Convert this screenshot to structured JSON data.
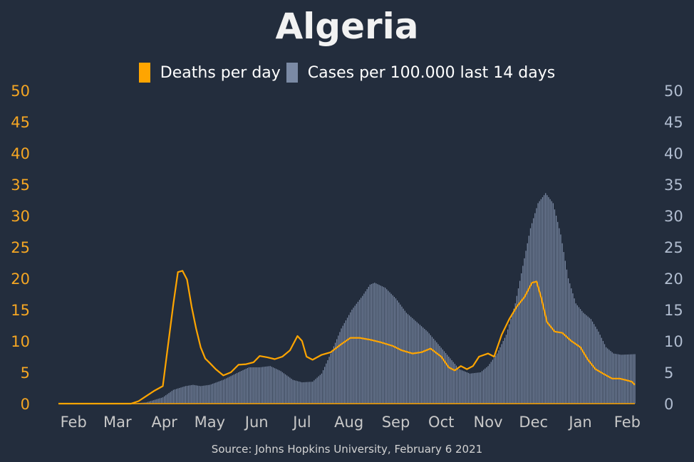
{
  "chart_data": {
    "type": "line",
    "title": "Algeria",
    "source": "Source: Johns Hopkins University, February 6 2021",
    "x_range": [
      "2020-01-22",
      "2021-02-06"
    ],
    "x_tick_labels": [
      "Feb",
      "Mar",
      "Apr",
      "May",
      "Jun",
      "Jul",
      "Aug",
      "Sep",
      "Oct",
      "Nov",
      "Dec",
      "Jan",
      "Feb"
    ],
    "x_tick_dates": [
      "2020-02-01",
      "2020-03-01",
      "2020-04-01",
      "2020-05-01",
      "2020-06-01",
      "2020-07-01",
      "2020-08-01",
      "2020-09-01",
      "2020-10-01",
      "2020-11-01",
      "2020-12-01",
      "2021-01-01",
      "2021-02-01"
    ],
    "y_left": {
      "ylim": [
        0,
        50
      ],
      "ticks": [
        "0",
        "5",
        "10",
        "15",
        "20",
        "25",
        "30",
        "35",
        "40",
        "45",
        "50"
      ],
      "color": "#f5a623"
    },
    "y_right": {
      "ylim": [
        0,
        50
      ],
      "ticks": [
        "0",
        "5",
        "10",
        "15",
        "20",
        "25",
        "30",
        "35",
        "40",
        "45",
        "50"
      ],
      "color": "#b0bccf"
    },
    "legend_position": "top",
    "series": [
      {
        "name": "Deaths per day",
        "kind": "line",
        "axis": "left",
        "color": "#ffa500",
        "points": [
          [
            "2020-01-22",
            0
          ],
          [
            "2020-03-10",
            0
          ],
          [
            "2020-03-15",
            0.4
          ],
          [
            "2020-03-20",
            1.2
          ],
          [
            "2020-03-25",
            2.0
          ],
          [
            "2020-03-31",
            2.8
          ],
          [
            "2020-04-03",
            8.5
          ],
          [
            "2020-04-07",
            16
          ],
          [
            "2020-04-10",
            21
          ],
          [
            "2020-04-13",
            21.2
          ],
          [
            "2020-04-16",
            19.8
          ],
          [
            "2020-04-19",
            15.5
          ],
          [
            "2020-04-22",
            12
          ],
          [
            "2020-04-25",
            9
          ],
          [
            "2020-04-28",
            7.2
          ],
          [
            "2020-05-01",
            6.5
          ],
          [
            "2020-05-05",
            5.5
          ],
          [
            "2020-05-10",
            4.5
          ],
          [
            "2020-05-15",
            5
          ],
          [
            "2020-05-20",
            6.2
          ],
          [
            "2020-05-25",
            6.3
          ],
          [
            "2020-05-30",
            6.6
          ],
          [
            "2020-06-03",
            7.6
          ],
          [
            "2020-06-08",
            7.4
          ],
          [
            "2020-06-13",
            7.1
          ],
          [
            "2020-06-18",
            7.5
          ],
          [
            "2020-06-23",
            8.5
          ],
          [
            "2020-06-28",
            10.8
          ],
          [
            "2020-07-01",
            10
          ],
          [
            "2020-07-04",
            7.5
          ],
          [
            "2020-07-08",
            7
          ],
          [
            "2020-07-14",
            7.8
          ],
          [
            "2020-07-20",
            8.2
          ],
          [
            "2020-07-27",
            9.5
          ],
          [
            "2020-08-02",
            10.5
          ],
          [
            "2020-08-08",
            10.5
          ],
          [
            "2020-08-15",
            10.2
          ],
          [
            "2020-08-22",
            9.8
          ],
          [
            "2020-08-30",
            9.2
          ],
          [
            "2020-09-05",
            8.5
          ],
          [
            "2020-09-12",
            8
          ],
          [
            "2020-09-18",
            8.2
          ],
          [
            "2020-09-24",
            8.8
          ],
          [
            "2020-10-01",
            7.5
          ],
          [
            "2020-10-06",
            5.8
          ],
          [
            "2020-10-10",
            5.3
          ],
          [
            "2020-10-14",
            6
          ],
          [
            "2020-10-18",
            5.5
          ],
          [
            "2020-10-22",
            6
          ],
          [
            "2020-10-26",
            7.5
          ],
          [
            "2020-11-01",
            8
          ],
          [
            "2020-11-05",
            7.5
          ],
          [
            "2020-11-10",
            11
          ],
          [
            "2020-11-15",
            13.5
          ],
          [
            "2020-11-20",
            15.5
          ],
          [
            "2020-11-25",
            17
          ],
          [
            "2020-11-30",
            19.3
          ],
          [
            "2020-12-03",
            19.5
          ],
          [
            "2020-12-06",
            17
          ],
          [
            "2020-12-10",
            13
          ],
          [
            "2020-12-15",
            11.5
          ],
          [
            "2020-12-20",
            11.3
          ],
          [
            "2020-12-26",
            10
          ],
          [
            "2021-01-01",
            9
          ],
          [
            "2021-01-06",
            7
          ],
          [
            "2021-01-11",
            5.5
          ],
          [
            "2021-01-16",
            4.8
          ],
          [
            "2021-01-22",
            4
          ],
          [
            "2021-01-27",
            4
          ],
          [
            "2021-02-01",
            3.7
          ],
          [
            "2021-02-04",
            3.5
          ],
          [
            "2021-02-06",
            3
          ]
        ]
      },
      {
        "name": "Cases per 100.000 last 14 days",
        "kind": "bars",
        "axis": "right",
        "color": "#7b8aa5",
        "points": [
          [
            "2020-01-22",
            0
          ],
          [
            "2020-03-10",
            0
          ],
          [
            "2020-03-20",
            0.2
          ],
          [
            "2020-03-31",
            1
          ],
          [
            "2020-04-07",
            2.2
          ],
          [
            "2020-04-15",
            2.8
          ],
          [
            "2020-04-20",
            3
          ],
          [
            "2020-04-25",
            2.8
          ],
          [
            "2020-05-01",
            3
          ],
          [
            "2020-05-10",
            3.8
          ],
          [
            "2020-05-20",
            5
          ],
          [
            "2020-05-27",
            5.8
          ],
          [
            "2020-06-03",
            5.8
          ],
          [
            "2020-06-10",
            6
          ],
          [
            "2020-06-17",
            5.2
          ],
          [
            "2020-06-25",
            3.8
          ],
          [
            "2020-07-01",
            3.4
          ],
          [
            "2020-07-08",
            3.5
          ],
          [
            "2020-07-14",
            4.8
          ],
          [
            "2020-07-20",
            8
          ],
          [
            "2020-07-27",
            12
          ],
          [
            "2020-08-03",
            15
          ],
          [
            "2020-08-10",
            17.2
          ],
          [
            "2020-08-15",
            19
          ],
          [
            "2020-08-18",
            19.3
          ],
          [
            "2020-08-25",
            18.5
          ],
          [
            "2020-09-01",
            16.8
          ],
          [
            "2020-09-08",
            14.5
          ],
          [
            "2020-09-15",
            13
          ],
          [
            "2020-09-22",
            11.5
          ],
          [
            "2020-09-29",
            9.5
          ],
          [
            "2020-10-06",
            7.5
          ],
          [
            "2020-10-13",
            5.5
          ],
          [
            "2020-10-20",
            4.8
          ],
          [
            "2020-10-27",
            5
          ],
          [
            "2020-11-01",
            6
          ],
          [
            "2020-11-07",
            8
          ],
          [
            "2020-11-13",
            11
          ],
          [
            "2020-11-19",
            16
          ],
          [
            "2020-11-24",
            22
          ],
          [
            "2020-11-29",
            28
          ],
          [
            "2020-12-04",
            32
          ],
          [
            "2020-12-09",
            33.6
          ],
          [
            "2020-12-14",
            32
          ],
          [
            "2020-12-19",
            27
          ],
          [
            "2020-12-24",
            20
          ],
          [
            "2020-12-29",
            16
          ],
          [
            "2021-01-03",
            14.5
          ],
          [
            "2021-01-08",
            13.5
          ],
          [
            "2021-01-13",
            11.5
          ],
          [
            "2021-01-18",
            9
          ],
          [
            "2021-01-23",
            8
          ],
          [
            "2021-01-28",
            7.8
          ],
          [
            "2021-02-06",
            7.9
          ]
        ]
      }
    ]
  }
}
